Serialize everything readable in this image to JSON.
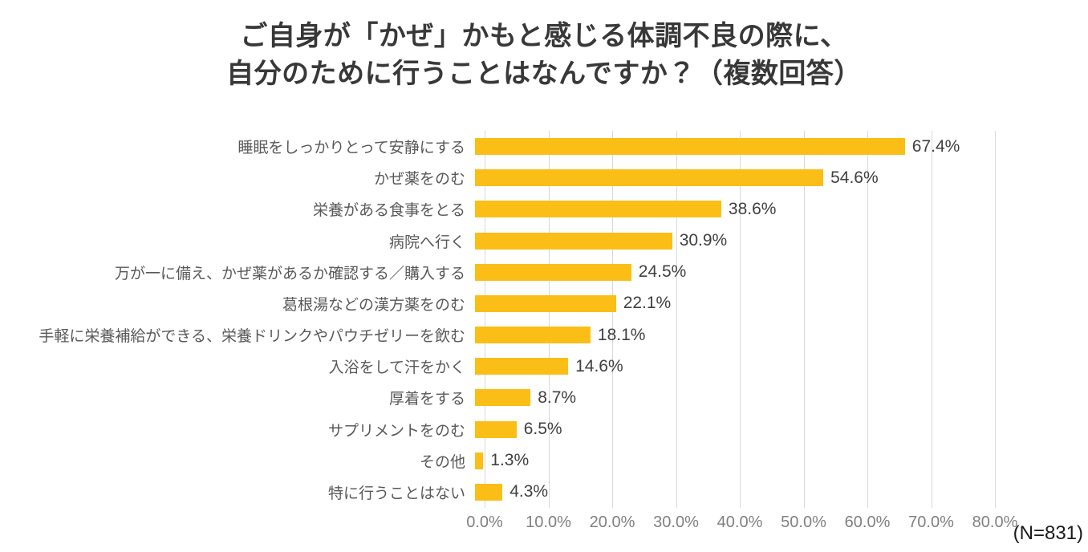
{
  "title": {
    "line1": "ご自身が「かぜ」かもと感じる体調不良の際に、",
    "line2": "自分のために行うことはなんですか？（複数回答）"
  },
  "note": "(N=831)",
  "colors": {
    "bar": "#FBBE17",
    "grid": "#D9D9D9",
    "title_text": "#383838",
    "label_text": "#595959",
    "value_text": "#404040",
    "tick_text": "#808080",
    "note_text": "#1A1A1A",
    "background": "#FFFFFF"
  },
  "chart_data": {
    "type": "bar",
    "orientation": "horizontal",
    "title": "ご自身が「かぜ」かもと感じる体調不良の際に、自分のために行うことはなんですか？（複数回答）",
    "categories": [
      "睡眠をしっかりとって安静にする",
      "かぜ薬をのむ",
      "栄養がある食事をとる",
      "病院へ行く",
      "万が一に備え、かぜ薬があるか確認する／購入する",
      "葛根湯などの漢方薬をのむ",
      "手軽に栄養補給ができる、栄養ドリンクやパウチゼリーを飲む",
      "入浴をして汗をかく",
      "厚着をする",
      "サプリメントをのむ",
      "その他",
      "特に行うことはない"
    ],
    "values": [
      67.4,
      54.6,
      38.6,
      30.9,
      24.5,
      22.1,
      18.1,
      14.6,
      8.7,
      6.5,
      1.3,
      4.3
    ],
    "value_labels": [
      "67.4%",
      "54.6%",
      "38.6%",
      "30.9%",
      "24.5%",
      "22.1%",
      "18.1%",
      "14.6%",
      "8.7%",
      "6.5%",
      "1.3%",
      "4.3%"
    ],
    "xticks": [
      "0.0%",
      "10.0%",
      "20.0%",
      "30.0%",
      "40.0%",
      "50.0%",
      "60.0%",
      "70.0%",
      "80.0%"
    ],
    "xlim": [
      0,
      80
    ],
    "grid": true,
    "legend": false,
    "sample_size_note": "(N=831)"
  }
}
